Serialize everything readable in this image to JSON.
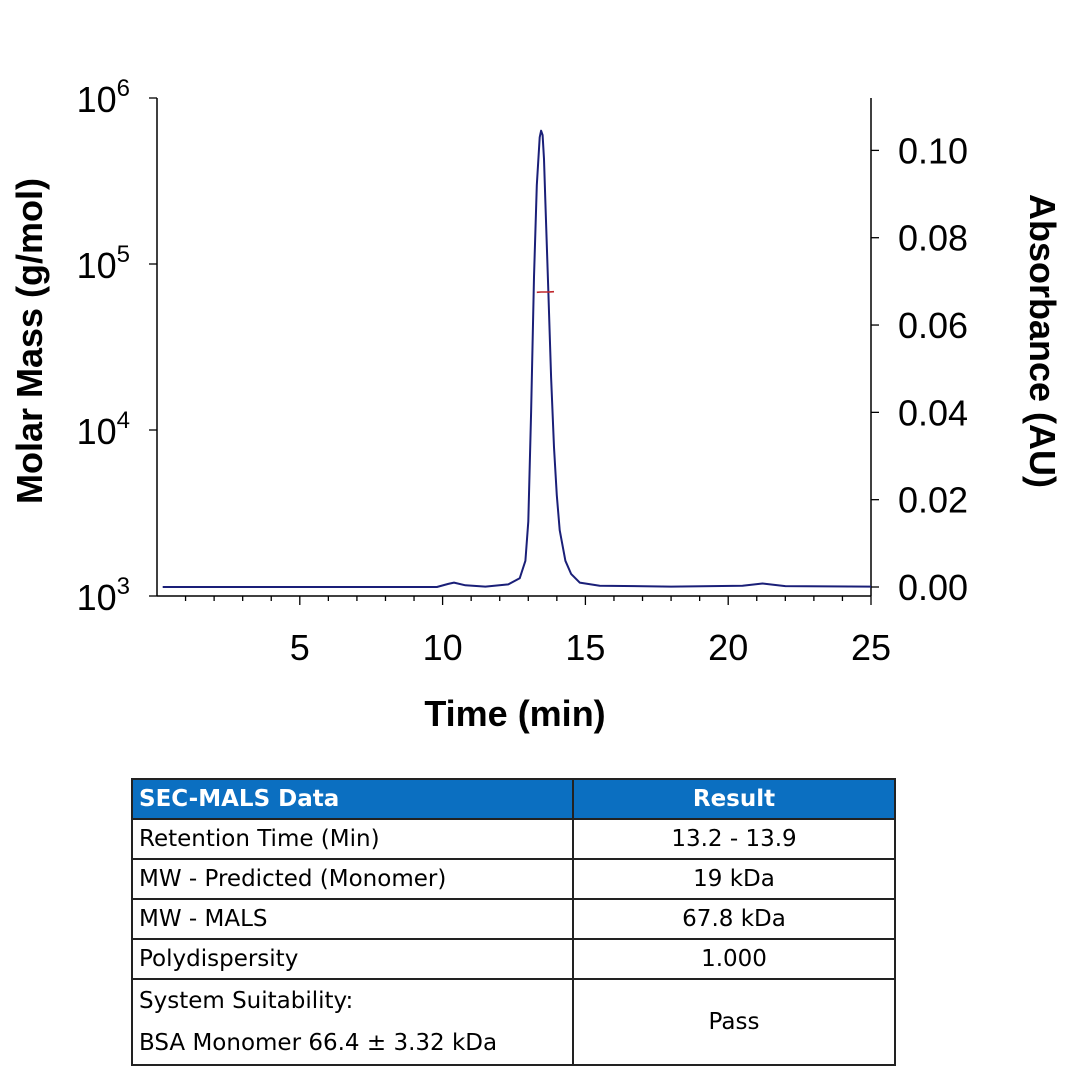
{
  "chart_data": {
    "type": "line",
    "xlabel": "Time (min)",
    "ylabel_left": "Molar Mass (g/mol)",
    "ylabel_right": "Absorbance (AU)",
    "xlim": [
      0,
      25
    ],
    "x_ticks": [
      5,
      10,
      15,
      20,
      25
    ],
    "left_axis": {
      "scale": "log",
      "ylim": [
        1000,
        1000000
      ],
      "ticks": [
        {
          "base": "10",
          "exp": "3"
        },
        {
          "base": "10",
          "exp": "4"
        },
        {
          "base": "10",
          "exp": "5"
        },
        {
          "base": "10",
          "exp": "6"
        }
      ]
    },
    "right_axis": {
      "scale": "linear",
      "ylim": [
        0,
        0.112
      ],
      "ticks": [
        "0.00",
        "0.02",
        "0.04",
        "0.06",
        "0.08",
        "0.10"
      ]
    },
    "series": [
      {
        "axis": "right",
        "color": "#1a1f78",
        "x": [
          0.2,
          9.8,
          10.2,
          10.4,
          10.8,
          11.5,
          12.3,
          12.7,
          12.9,
          13.0,
          13.1,
          13.2,
          13.3,
          13.4,
          13.45,
          13.5,
          13.55,
          13.6,
          13.7,
          13.8,
          13.9,
          14.0,
          14.1,
          14.3,
          14.5,
          14.8,
          15.5,
          18.0,
          20.5,
          21.2,
          22.0,
          25.0
        ],
        "y": [
          0.0,
          0.0,
          0.0007,
          0.001,
          0.0004,
          0.0001,
          0.0006,
          0.002,
          0.006,
          0.015,
          0.04,
          0.071,
          0.092,
          0.103,
          0.1045,
          0.1035,
          0.098,
          0.088,
          0.068,
          0.048,
          0.032,
          0.021,
          0.013,
          0.006,
          0.003,
          0.001,
          0.0003,
          0.0001,
          0.0003,
          0.0008,
          0.0002,
          0.0001
        ]
      },
      {
        "axis": "left",
        "color": "#c0282d",
        "x": [
          13.3,
          13.45,
          13.6,
          13.75,
          13.9
        ],
        "y": [
          67500,
          67800,
          67800,
          67900,
          68100
        ]
      }
    ]
  },
  "table": {
    "header": [
      "SEC-MALS Data",
      "Result"
    ],
    "rows": [
      {
        "param": "Retention Time (Min)",
        "value": "13.2 - 13.9"
      },
      {
        "param": "MW - Predicted (Monomer)",
        "value": "19 kDa"
      },
      {
        "param": "MW - MALS",
        "value": "67.8 kDa"
      },
      {
        "param": "Polydispersity",
        "value": "1.000"
      }
    ],
    "last_row": {
      "param_line1": "System Suitability:",
      "param_line2": "BSA Monomer 66.4 ± 3.32 kDa",
      "value": "Pass"
    }
  }
}
